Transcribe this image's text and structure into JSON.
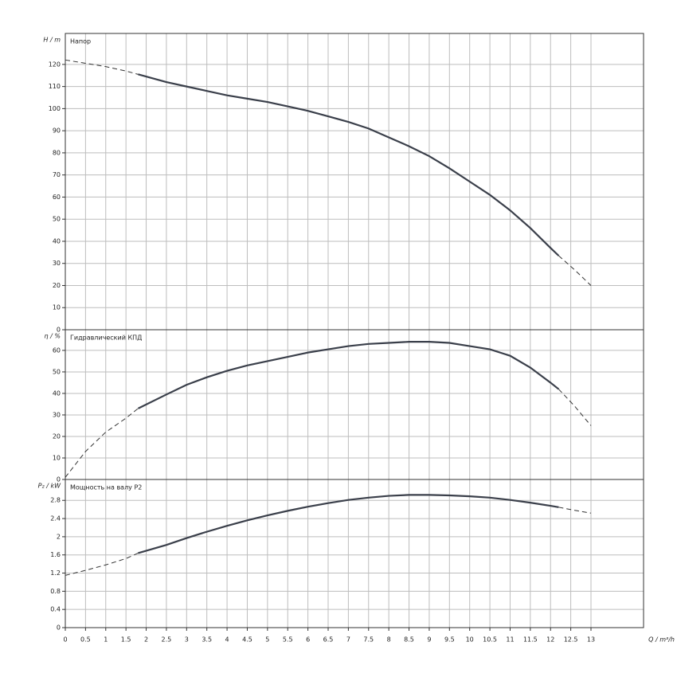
{
  "chart_data": [
    {
      "type": "line",
      "title": "Напор",
      "y_label": "H / m",
      "xlim": [
        0,
        14.3
      ],
      "xticks": [
        0,
        0.5,
        1,
        1.5,
        2,
        2.5,
        3,
        3.5,
        4,
        4.5,
        5,
        5.5,
        6,
        6.5,
        7,
        7.5,
        8,
        8.5,
        9,
        9.5,
        10,
        10.5,
        11,
        11.5,
        12,
        12.5,
        13
      ],
      "ylim": [
        0,
        134
      ],
      "yticks": [
        0,
        10,
        20,
        30,
        40,
        50,
        60,
        70,
        80,
        90,
        100,
        110,
        120
      ],
      "grid": true,
      "series": [
        {
          "style": "dashed",
          "color": "#333333",
          "x": [
            0,
            0.5,
            1,
            1.5,
            1.8
          ],
          "values": [
            122,
            120.5,
            119,
            117,
            115.5
          ]
        },
        {
          "style": "solid",
          "color": "#3a3f4a",
          "x": [
            1.8,
            2.5,
            3,
            3.5,
            4,
            4.5,
            5,
            5.5,
            6,
            6.5,
            7,
            7.5,
            8,
            8.5,
            9,
            9.5,
            10,
            10.5,
            11,
            11.5,
            12,
            12.2
          ],
          "values": [
            115.5,
            112,
            110,
            108,
            106,
            104.5,
            103,
            101,
            99,
            96.5,
            94,
            91,
            87,
            83,
            78.5,
            73,
            67,
            61,
            54,
            46,
            37,
            33.5
          ]
        },
        {
          "style": "dashed",
          "color": "#333333",
          "x": [
            12.2,
            12.6,
            13
          ],
          "values": [
            33.5,
            27,
            20
          ]
        }
      ]
    },
    {
      "type": "line",
      "title": "Гидравлический КПД",
      "y_label": "η / %",
      "xlim": [
        0,
        14.3
      ],
      "xticks": [
        0,
        0.5,
        1,
        1.5,
        2,
        2.5,
        3,
        3.5,
        4,
        4.5,
        5,
        5.5,
        6,
        6.5,
        7,
        7.5,
        8,
        8.5,
        9,
        9.5,
        10,
        10.5,
        11,
        11.5,
        12,
        12.5,
        13
      ],
      "ylim": [
        0,
        69.6
      ],
      "yticks": [
        0,
        10,
        20,
        30,
        40,
        50,
        60
      ],
      "grid": true,
      "series": [
        {
          "style": "dashed",
          "color": "#333333",
          "x": [
            0,
            0.5,
            1,
            1.5,
            1.8
          ],
          "values": [
            1,
            13,
            22,
            28.5,
            33
          ]
        },
        {
          "style": "solid",
          "color": "#3a3f4a",
          "x": [
            1.8,
            2.5,
            3,
            3.5,
            4,
            4.5,
            5,
            5.5,
            6,
            6.5,
            7,
            7.5,
            8,
            8.5,
            9,
            9.5,
            10,
            10.5,
            11,
            11.5,
            12,
            12.2
          ],
          "values": [
            33,
            39.5,
            44,
            47.5,
            50.5,
            53,
            55,
            57,
            59,
            60.5,
            62,
            63,
            63.5,
            64,
            64,
            63.5,
            62,
            60.5,
            57.5,
            52,
            45,
            42
          ]
        },
        {
          "style": "dashed",
          "color": "#333333",
          "x": [
            12.2,
            12.6,
            13
          ],
          "values": [
            42,
            34,
            25
          ]
        }
      ]
    },
    {
      "type": "line",
      "title": "Мощность на валу P2",
      "y_label": "P₂ / kW",
      "x_label": "Q / m³/h",
      "xlim": [
        0,
        14.3
      ],
      "xticks": [
        0,
        0.5,
        1,
        1.5,
        2,
        2.5,
        3,
        3.5,
        4,
        4.5,
        5,
        5.5,
        6,
        6.5,
        7,
        7.5,
        8,
        8.5,
        9,
        9.5,
        10,
        10.5,
        11,
        11.5,
        12,
        12.5,
        13
      ],
      "ylim": [
        0,
        3.26
      ],
      "yticks": [
        0,
        0.4,
        0.8,
        1.2,
        1.6,
        2,
        2.4,
        2.8
      ],
      "grid": true,
      "series": [
        {
          "style": "dashed",
          "color": "#333333",
          "x": [
            0,
            0.5,
            1,
            1.5,
            1.8
          ],
          "values": [
            1.15,
            1.26,
            1.38,
            1.52,
            1.64
          ]
        },
        {
          "style": "solid",
          "color": "#3a3f4a",
          "x": [
            1.8,
            2.5,
            3,
            3.5,
            4,
            4.5,
            5,
            5.5,
            6,
            6.5,
            7,
            7.5,
            8,
            8.5,
            9,
            9.5,
            10,
            10.5,
            11,
            11.5,
            12,
            12.2
          ],
          "values": [
            1.64,
            1.82,
            1.97,
            2.11,
            2.24,
            2.36,
            2.47,
            2.57,
            2.66,
            2.74,
            2.81,
            2.86,
            2.9,
            2.92,
            2.92,
            2.91,
            2.89,
            2.86,
            2.81,
            2.75,
            2.68,
            2.65
          ]
        },
        {
          "style": "dashed",
          "color": "#333333",
          "x": [
            12.2,
            12.6,
            13
          ],
          "values": [
            2.65,
            2.58,
            2.52
          ]
        }
      ]
    }
  ]
}
